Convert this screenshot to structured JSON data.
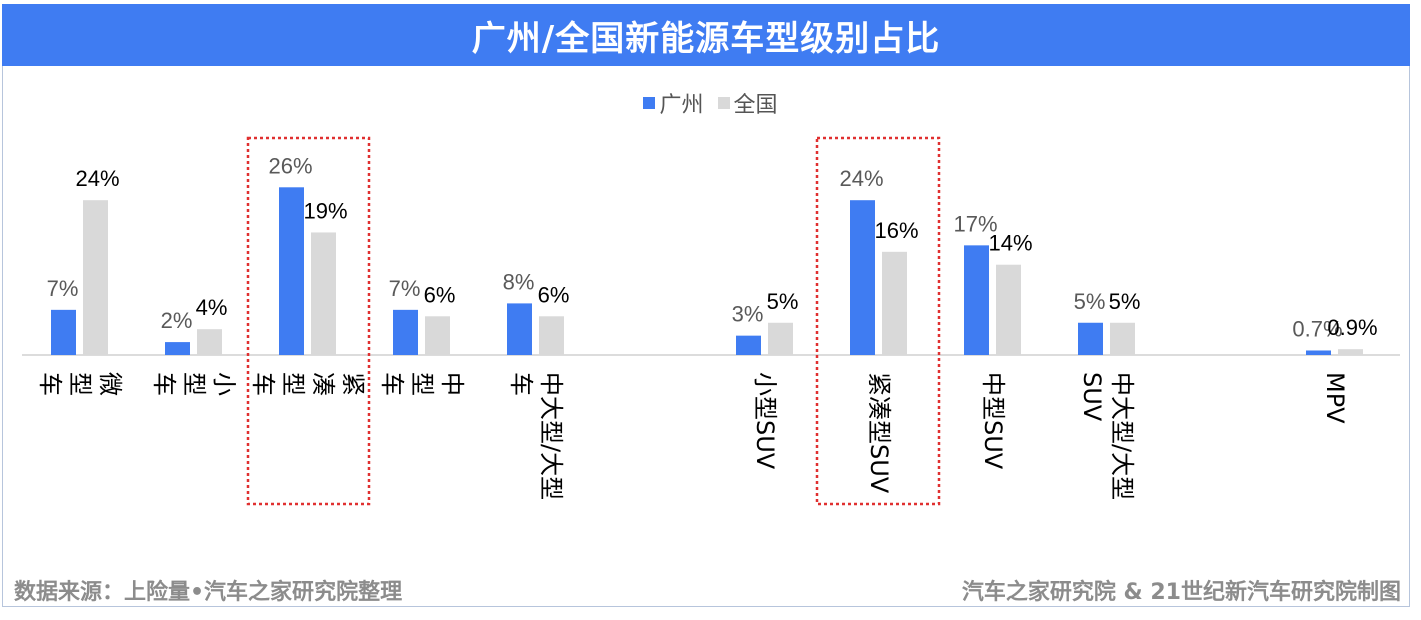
{
  "title": "广州/全国新能源车型级别占比",
  "colors": {
    "guangzhou": "#3f7cf2",
    "national": "#d9d9d9",
    "highlight": "#e03030"
  },
  "legend": {
    "guangzhou": "广州",
    "national": "全国"
  },
  "footer": {
    "source": "数据来源：上险量•汽车之家研究院整理",
    "credit": "汽车之家研究院 & 21世纪新汽车研究院制图"
  },
  "chart_data": {
    "type": "bar",
    "title": "广州/全国新能源车型级别占比",
    "xlabel": "",
    "ylabel": "",
    "ylim": [
      0,
      30
    ],
    "categories": [
      "微型车",
      "小型车",
      "紧凑型车",
      "中型车",
      "中大型/大型车",
      "小型SUV",
      "紧凑型SUV",
      "中型SUV",
      "中大型/大型SUV",
      "MPV"
    ],
    "category_lines": [
      [
        "微",
        "型",
        "车"
      ],
      [
        "小",
        "型",
        "车"
      ],
      [
        "紧",
        "凑",
        "型",
        "车"
      ],
      [
        "中",
        "型",
        "车"
      ],
      [
        "中大型/大型",
        "车"
      ],
      [
        "小型SUV"
      ],
      [
        "紧凑型SUV"
      ],
      [
        "中型SUV"
      ],
      [
        "中大型/大型",
        "SUV"
      ],
      [
        "MPV"
      ]
    ],
    "highlighted": [
      "紧凑型车",
      "紧凑型SUV"
    ],
    "series": [
      {
        "name": "广州",
        "values": [
          7,
          2,
          26,
          7,
          8,
          3,
          24,
          17,
          5,
          0.7
        ],
        "labels": [
          "7%",
          "2%",
          "26%",
          "7%",
          "8%",
          "3%",
          "24%",
          "17%",
          "5%",
          "0.7%"
        ]
      },
      {
        "name": "全国",
        "values": [
          24,
          4,
          19,
          6,
          6,
          5,
          16,
          14,
          5,
          0.9
        ],
        "labels": [
          "24%",
          "4%",
          "19%",
          "6%",
          "6%",
          "5%",
          "16%",
          "14%",
          "5%",
          "0.9%"
        ]
      }
    ]
  }
}
